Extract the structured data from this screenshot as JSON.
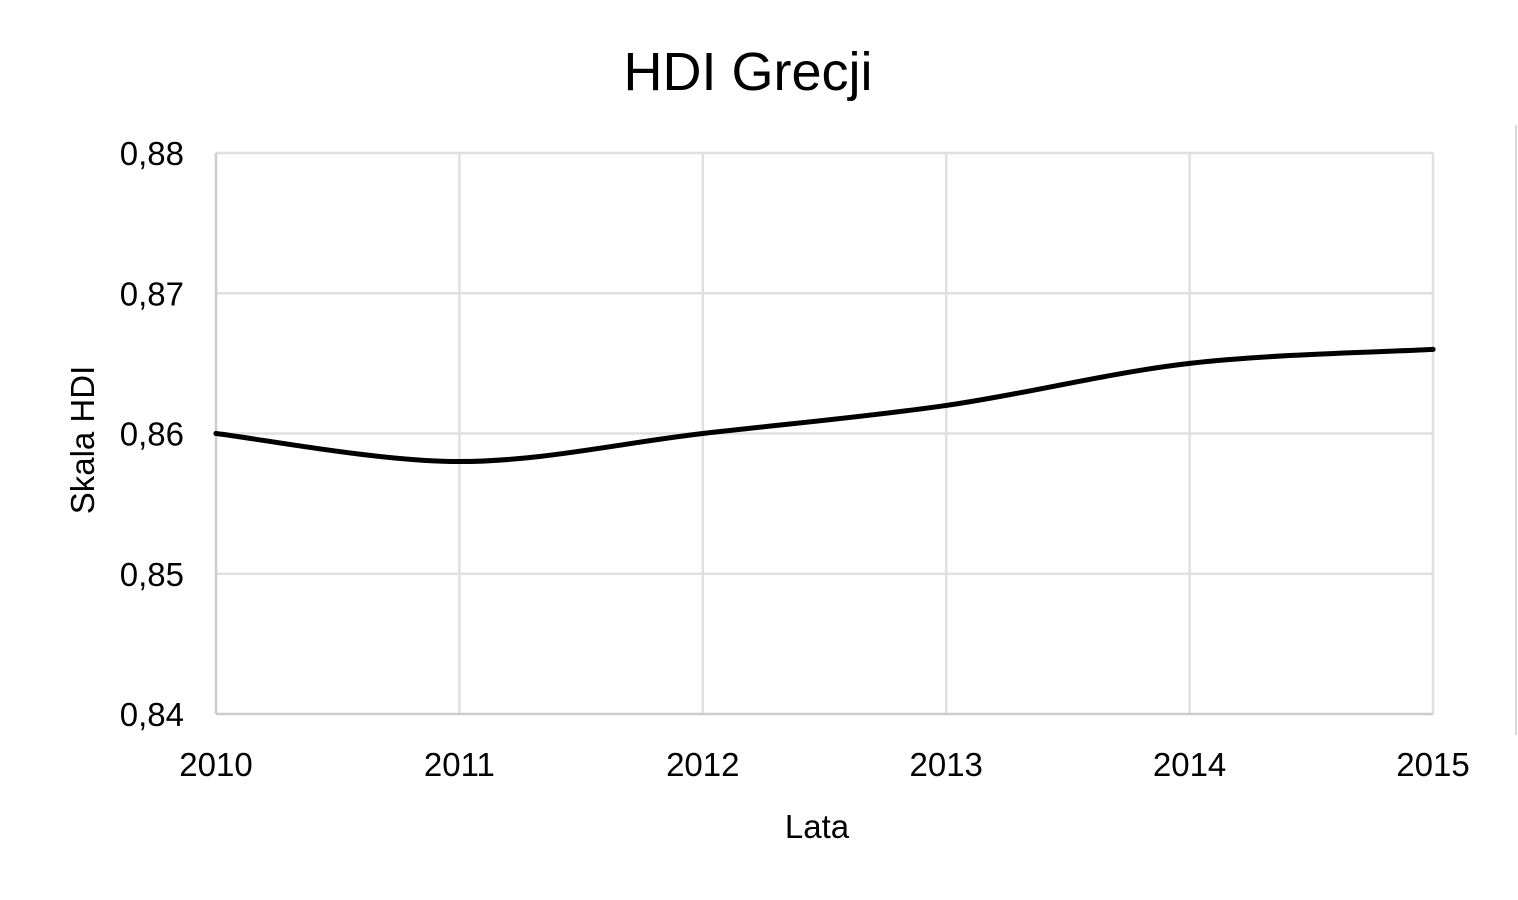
{
  "chart_data": {
    "type": "line",
    "title": "HDI Grecji",
    "xlabel": "Lata",
    "ylabel": "Skala HDI",
    "x": [
      "2010",
      "2011",
      "2012",
      "2013",
      "2014",
      "2015"
    ],
    "series": [
      {
        "values": [
          0.86,
          0.858,
          0.86,
          0.862,
          0.865,
          0.866
        ]
      }
    ],
    "ylim": [
      0.84,
      0.88
    ],
    "yticks": [
      "0,88",
      "0,87",
      "0,86",
      "0,85",
      "0,84"
    ],
    "ytick_values": [
      0.88,
      0.87,
      0.86,
      0.85,
      0.84
    ],
    "grid": true,
    "smooth": true,
    "colors": {
      "line": "#000000",
      "grid": "#e0e0e0",
      "axis": "#cccccc"
    }
  }
}
